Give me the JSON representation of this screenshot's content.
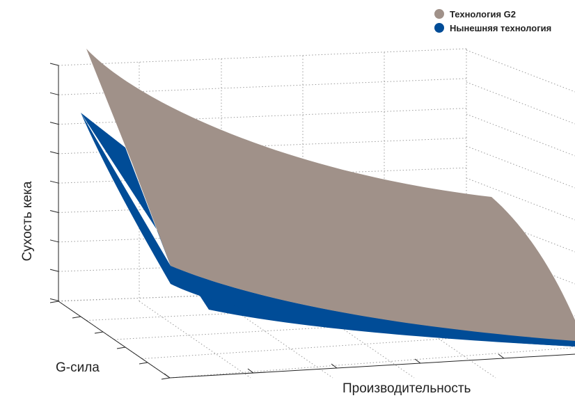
{
  "chart_data": {
    "type": "surface",
    "title": "",
    "xlabel": "Производительность",
    "ylabel": "G-сила",
    "zlabel": "Сухость кека",
    "grid": true,
    "legend_position": "top-right",
    "series": [
      {
        "name": "Технология G2",
        "color": "#a09189"
      },
      {
        "name": "Нынешняя технология",
        "color": "#004c97"
      }
    ]
  }
}
